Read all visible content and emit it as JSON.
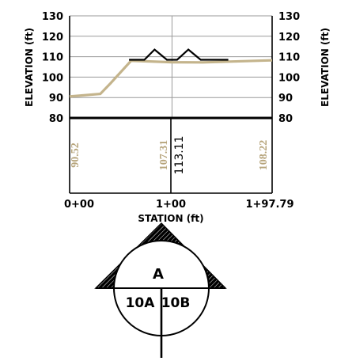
{
  "chart_data": {
    "type": "line",
    "xlabel": "STATION (ft)",
    "ylabel": "ELEVATION (ft)",
    "ylim": [
      80,
      130
    ],
    "yticks": [
      "80",
      "90",
      "100",
      "110",
      "120",
      "130"
    ],
    "xticks": [
      "0+00",
      "1+00",
      "1+97.79"
    ],
    "grid": true,
    "series": [
      {
        "color": "#c4b48c",
        "x": [
          0,
          30,
          40,
          60,
          100,
          130,
          197.79
        ],
        "y": [
          90.5,
          91.8,
          97.0,
          108.0,
          107.3,
          107.2,
          108.2
        ]
      },
      {
        "color": "#000000",
        "x": [
          58,
          73,
          83,
          95,
          105,
          116,
          128,
          155
        ],
        "y": [
          108.5,
          108.5,
          113.5,
          108.5,
          108.5,
          113.5,
          108.5,
          108.5
        ]
      }
    ],
    "value_labels": {
      "left": "90.52",
      "mid": "107.31",
      "mid_secondary": "113.11",
      "right": "108.22"
    }
  },
  "section_symbol": {
    "top_letter": "A",
    "bottom_left": "10A",
    "bottom_right": "10B"
  },
  "colors": {
    "profile": "#c4b48c",
    "label_tan": "#b7a57c",
    "ink": "#000000",
    "grid": "#9a9a9a"
  }
}
